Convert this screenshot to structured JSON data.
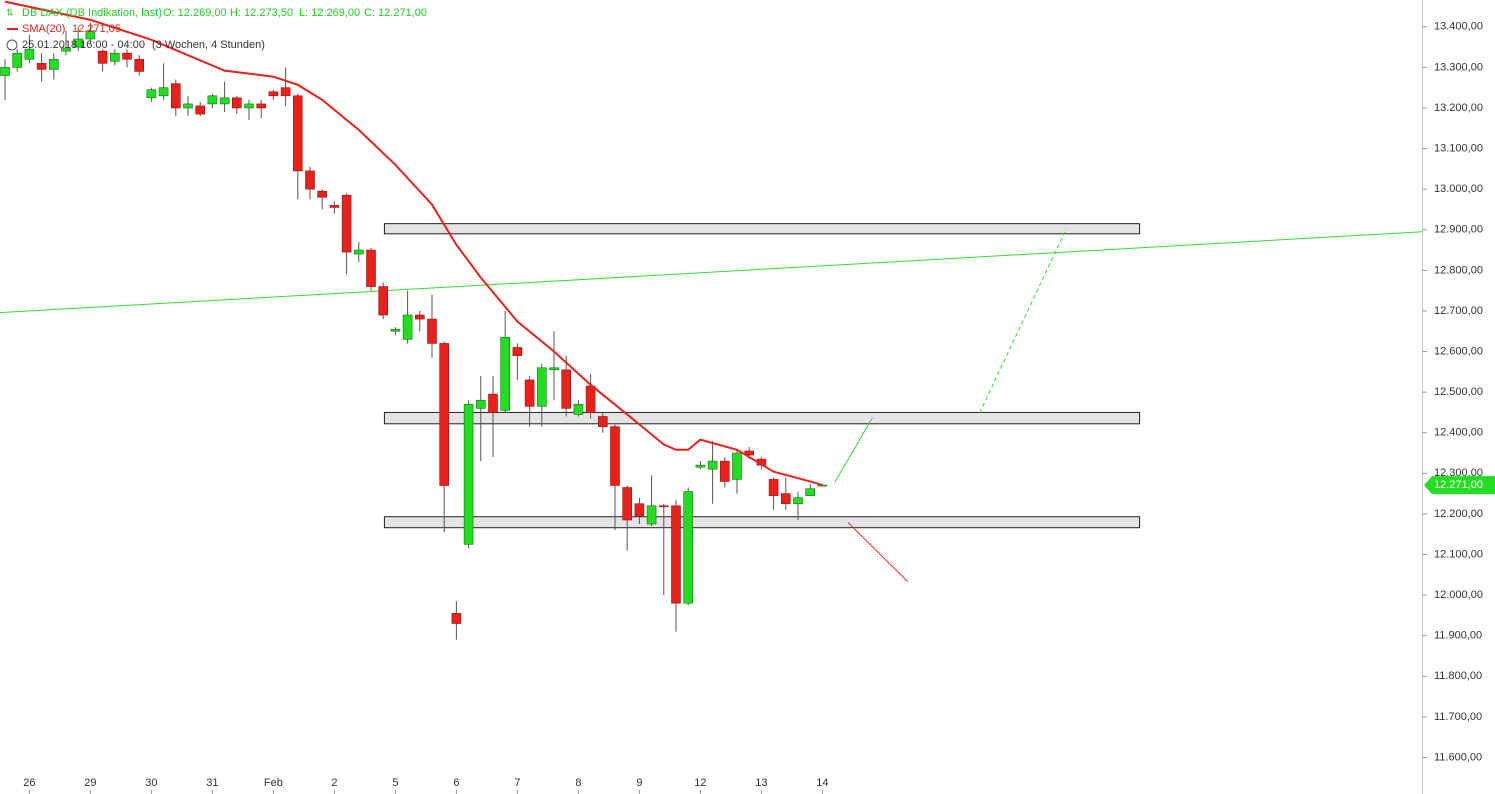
{
  "chart_data": {
    "type": "candlestick",
    "legend": {
      "instrument": "DB DAX (DB Indikation, last)",
      "ohlc": [
        "O: 12.269,00",
        "H: 12.273,50",
        "L: 12.269,00",
        "C: 12.271,00"
      ],
      "indicator": "SMA(20)",
      "indicator_value": "12.271,05",
      "period": "25.01.2018 16:00 - 04:00",
      "range": "(3 Wochen, 4 Stunden)"
    },
    "xlim": [
      -0.41,
      116.15
    ],
    "ylim": [
      11510,
      13466
    ],
    "xticks": [
      {
        "value": 2,
        "label": "26"
      },
      {
        "value": 7,
        "label": "29"
      },
      {
        "value": 12,
        "label": "30"
      },
      {
        "value": 17,
        "label": "31"
      },
      {
        "value": 22,
        "label": "Feb"
      },
      {
        "value": 27,
        "label": "2"
      },
      {
        "value": 32,
        "label": "5"
      },
      {
        "value": 37,
        "label": "6"
      },
      {
        "value": 42,
        "label": "7"
      },
      {
        "value": 47,
        "label": "8"
      },
      {
        "value": 52,
        "label": "9"
      },
      {
        "value": 57,
        "label": "12"
      },
      {
        "value": 62,
        "label": "13"
      },
      {
        "value": 67,
        "label": "14"
      }
    ],
    "yticks": [
      {
        "value": 11600,
        "label": "11.600,00"
      },
      {
        "value": 11700,
        "label": "11.700,00"
      },
      {
        "value": 11800,
        "label": "11.800,00"
      },
      {
        "value": 11900,
        "label": "11.900,00"
      },
      {
        "value": 12000,
        "label": "12.000,00"
      },
      {
        "value": 12100,
        "label": "12.100,00"
      },
      {
        "value": 12200,
        "label": "12.200,00"
      },
      {
        "value": 12300,
        "label": "12.300,00"
      },
      {
        "value": 12400,
        "label": "12.400,00"
      },
      {
        "value": 12500,
        "label": "12.500,00"
      },
      {
        "value": 12600,
        "label": "12.600,00"
      },
      {
        "value": 12700,
        "label": "12.700,00"
      },
      {
        "value": 12800,
        "label": "12.800,00"
      },
      {
        "value": 12900,
        "label": "12.900,00"
      },
      {
        "value": 13000,
        "label": "13.000,00"
      },
      {
        "value": 13100,
        "label": "13.100,00"
      },
      {
        "value": 13200,
        "label": "13.200,00"
      },
      {
        "value": 13300,
        "label": "13.300,00"
      },
      {
        "value": 13400,
        "label": "13.400,00"
      }
    ],
    "up_color": "#22dd22",
    "down_color": "#e8221b",
    "candles": {
      "x": [
        0,
        1,
        2,
        3,
        4,
        5,
        6,
        7,
        8,
        9,
        10,
        11,
        12,
        13,
        14,
        15,
        16,
        17,
        18,
        19,
        20,
        21,
        22,
        23,
        24,
        25,
        26,
        27,
        28,
        29,
        30,
        31,
        32,
        33,
        34,
        35,
        36,
        37,
        38,
        39,
        40,
        41,
        42,
        43,
        44,
        45,
        46,
        47,
        48,
        49,
        50,
        51,
        52,
        53,
        54,
        55,
        56,
        57,
        58,
        59,
        60,
        61,
        62,
        63,
        64,
        65,
        66,
        67
      ],
      "open": [
        13280,
        13300,
        13320,
        13310,
        13295,
        13340,
        13350,
        13370,
        13340,
        13315,
        13335,
        13320,
        13225,
        13230,
        13260,
        13200,
        13205,
        13210,
        13210,
        13225,
        13200,
        13210,
        13240,
        13250,
        13230,
        13045,
        12995,
        12960,
        12985,
        12840,
        12850,
        12760,
        12650,
        12630,
        12690,
        12680,
        12620,
        11955,
        12125,
        12460,
        12495,
        12455,
        12610,
        12530,
        12465,
        12555,
        12555,
        12445,
        12515,
        12440,
        12415,
        12265,
        12225,
        12175,
        12220,
        12220,
        11980,
        12315,
        12310,
        12330,
        12285,
        12355,
        12335,
        12285,
        12250,
        12225,
        12245,
        12269
      ],
      "high": [
        13320,
        13345,
        13380,
        13335,
        13335,
        13390,
        13400,
        13410,
        13345,
        13345,
        13345,
        13330,
        13250,
        13310,
        13270,
        13230,
        13215,
        13235,
        13265,
        13230,
        13220,
        13220,
        13245,
        13300,
        13235,
        13055,
        13000,
        12970,
        12990,
        12870,
        12855,
        12770,
        12660,
        12750,
        12700,
        12740,
        12625,
        11985,
        12480,
        12540,
        12540,
        12700,
        12620,
        12540,
        12570,
        12650,
        12590,
        12480,
        12545,
        12450,
        12420,
        12270,
        12240,
        12295,
        12225,
        12235,
        12265,
        12330,
        12380,
        12340,
        12360,
        12365,
        12340,
        12290,
        12290,
        12255,
        12273.5,
        12273.5
      ],
      "low": [
        13220,
        13290,
        13310,
        13265,
        13270,
        13330,
        13340,
        13360,
        13290,
        13305,
        13300,
        13280,
        13215,
        13220,
        13180,
        13180,
        13180,
        13200,
        13190,
        13185,
        13170,
        13175,
        13220,
        13205,
        12975,
        12975,
        12950,
        12940,
        12790,
        12820,
        12750,
        12680,
        12640,
        12620,
        12650,
        12585,
        12155,
        11890,
        12115,
        12330,
        12340,
        12450,
        12530,
        12415,
        12415,
        12480,
        12440,
        12440,
        12435,
        12400,
        12160,
        12110,
        12175,
        12170,
        12000,
        11910,
        11975,
        12310,
        12225,
        12265,
        12250,
        12335,
        12310,
        12210,
        12210,
        12185,
        12245,
        12269
      ],
      "close": [
        13300,
        13335,
        13345,
        13295,
        13320,
        13348,
        13370,
        13390,
        13310,
        13335,
        13320,
        13290,
        13245,
        13250,
        13200,
        13210,
        13185,
        13230,
        13225,
        13200,
        13210,
        13200,
        13230,
        13230,
        13045,
        13000,
        12980,
        12955,
        12845,
        12850,
        12760,
        12690,
        12655,
        12690,
        12680,
        12620,
        12270,
        11930,
        12470,
        12480,
        12450,
        12635,
        12590,
        12465,
        12560,
        12560,
        12460,
        12470,
        12450,
        12415,
        12270,
        12185,
        12195,
        12220,
        12218,
        11980,
        12255,
        12320,
        12330,
        12280,
        12350,
        12345,
        12320,
        12245,
        12225,
        12240,
        12262,
        12271
      ]
    },
    "sma": {
      "color": "#e8221b",
      "x": [
        0,
        7,
        12,
        18,
        22,
        24,
        26,
        29,
        32,
        35,
        37,
        39,
        42,
        45,
        48,
        51,
        54,
        55,
        56,
        57,
        60,
        63,
        66,
        67
      ],
      "values": [
        13462,
        13417,
        13368,
        13292,
        13277,
        13257,
        13220,
        13146,
        13060,
        12962,
        12863,
        12782,
        12674,
        12600,
        12518,
        12445,
        12371,
        12358,
        12358,
        12383,
        12358,
        12304,
        12280,
        12271.05
      ]
    },
    "price_tag": {
      "value": 12271,
      "label": "12.271,00",
      "color": "#22dd22"
    },
    "zones": [
      {
        "x": [
          31.1,
          93
        ],
        "y": [
          12890,
          12915
        ]
      },
      {
        "x": [
          31.1,
          93
        ],
        "y": [
          12422,
          12450
        ]
      },
      {
        "x": [
          31.1,
          93
        ],
        "y": [
          12166,
          12193
        ]
      }
    ],
    "lines": [
      {
        "color": "#33dd33",
        "dash": false,
        "x": [
          -0.41,
          116.15
        ],
        "y": [
          12696,
          12895
        ]
      },
      {
        "color": "#33dd33",
        "dash": false,
        "x": [
          68.0,
          71.1
        ],
        "y": [
          12277,
          12437
        ]
      },
      {
        "color": "#33dd33",
        "dash": true,
        "x": [
          79.9,
          87.0
        ],
        "y": [
          12449,
          12903
        ]
      },
      {
        "color": "#e8221b",
        "dash": false,
        "x": [
          69.1,
          74.0
        ],
        "y": [
          12179,
          12033
        ]
      }
    ]
  }
}
